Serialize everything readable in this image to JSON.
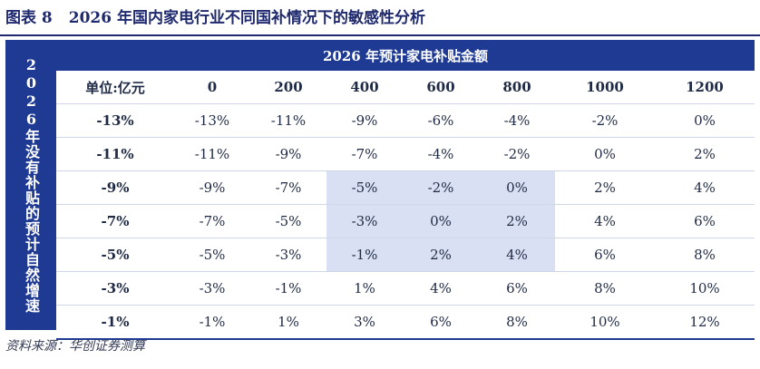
{
  "title": {
    "label": "图表 8",
    "text": "2026 年国内家电行业不同国补情况下的敏感性分析"
  },
  "table": {
    "column_group_header": "2026 年预计家电补贴金额",
    "row_group_header": "2026年没有补贴的预计自然增速",
    "corner_label": "单位:亿元",
    "columns": [
      "0",
      "200",
      "400",
      "600",
      "800",
      "1000",
      "1200"
    ],
    "rows": [
      {
        "label": "-13%",
        "values": [
          "-13%",
          "-11%",
          "-9%",
          "-6%",
          "-4%",
          "-2%",
          "0%"
        ]
      },
      {
        "label": "-11%",
        "values": [
          "-11%",
          "-9%",
          "-7%",
          "-4%",
          "-2%",
          "0%",
          "2%"
        ]
      },
      {
        "label": "-9%",
        "values": [
          "-9%",
          "-7%",
          "-5%",
          "-2%",
          "0%",
          "2%",
          "4%"
        ]
      },
      {
        "label": "-7%",
        "values": [
          "-7%",
          "-5%",
          "-3%",
          "0%",
          "2%",
          "4%",
          "6%"
        ]
      },
      {
        "label": "-5%",
        "values": [
          "-5%",
          "-3%",
          "-1%",
          "2%",
          "4%",
          "6%",
          "8%"
        ]
      },
      {
        "label": "-3%",
        "values": [
          "-3%",
          "-1%",
          "1%",
          "4%",
          "6%",
          "8%",
          "10%"
        ]
      },
      {
        "label": "-1%",
        "values": [
          "-1%",
          "1%",
          "3%",
          "6%",
          "8%",
          "10%",
          "12%"
        ]
      }
    ],
    "highlighted_rows": [
      2,
      3,
      4
    ],
    "highlighted_columns": [
      2,
      3,
      4
    ]
  },
  "source": "资料来源：华创证券测算",
  "colors": {
    "header_bg": "#1f3a93",
    "highlight_bg": "#d9e0f3",
    "title_text": "#1f2a6e"
  }
}
